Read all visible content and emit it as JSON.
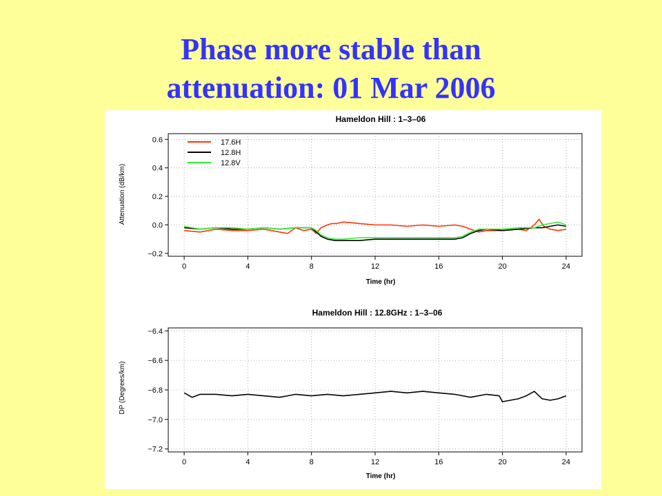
{
  "slide": {
    "title_line1": "Phase more stable than",
    "title_line2": "attenuation: 01 Mar 2006"
  },
  "colors": {
    "background": "#ffff99",
    "title": "#3333ff",
    "series_17_6H": "#ff3300",
    "series_12_8H": "#000000",
    "series_12_8V": "#33ee33"
  },
  "chart_data": [
    {
      "type": "line",
      "title": "Hameldon Hill : 1–3–06",
      "xlabel": "Time (hr)",
      "ylabel": "Attenuation (dB/km)",
      "xlim": [
        -1,
        25
      ],
      "ylim": [
        -0.22,
        0.64
      ],
      "xticks": [
        0,
        4,
        8,
        12,
        16,
        20,
        24
      ],
      "yticks": [
        -0.2,
        0.0,
        0.2,
        0.4,
        0.6
      ],
      "ytick_labels": [
        "−0.2",
        "0.0",
        "0.2",
        "0.4",
        "0.6"
      ],
      "grid": true,
      "legend_position": "top-left",
      "series": [
        {
          "name": "17.6H",
          "color": "#ff3300",
          "x": [
            0,
            1,
            2,
            3,
            4,
            5,
            6,
            6.5,
            7,
            7.5,
            8,
            8.3,
            8.6,
            9,
            9.3,
            9.6,
            10,
            11,
            12,
            13,
            14,
            15,
            16,
            17,
            17.5,
            18,
            18.5,
            19,
            20,
            21,
            21.5,
            22,
            22.3,
            22.6,
            23,
            23.5,
            24
          ],
          "y": [
            -0.04,
            -0.05,
            -0.03,
            -0.04,
            -0.04,
            -0.03,
            -0.05,
            -0.06,
            -0.02,
            -0.04,
            -0.03,
            -0.06,
            -0.02,
            0.0,
            0.01,
            0.01,
            0.02,
            0.01,
            0.0,
            0.0,
            -0.01,
            0.0,
            -0.01,
            0.0,
            -0.01,
            -0.03,
            -0.05,
            -0.04,
            -0.04,
            -0.03,
            -0.04,
            0.0,
            0.04,
            -0.01,
            -0.03,
            -0.04,
            -0.03
          ]
        },
        {
          "name": "12.8H",
          "color": "#000000",
          "x": [
            0,
            1,
            2,
            3,
            4,
            5,
            6,
            7,
            8,
            8.3,
            8.6,
            9,
            9.5,
            10,
            11,
            12,
            13,
            14,
            15,
            16,
            17,
            17.5,
            18,
            18.5,
            19,
            20,
            21,
            22,
            22.5,
            23,
            23.5,
            24
          ],
          "y": [
            -0.02,
            -0.03,
            -0.02,
            -0.03,
            -0.03,
            -0.02,
            -0.03,
            -0.02,
            -0.02,
            -0.05,
            -0.08,
            -0.1,
            -0.11,
            -0.11,
            -0.11,
            -0.1,
            -0.1,
            -0.1,
            -0.1,
            -0.1,
            -0.1,
            -0.09,
            -0.06,
            -0.04,
            -0.03,
            -0.04,
            -0.03,
            -0.02,
            -0.02,
            -0.01,
            0.0,
            -0.01
          ]
        },
        {
          "name": "12.8V",
          "color": "#33ee33",
          "x": [
            0,
            1,
            2,
            3,
            4,
            5,
            6,
            7,
            8,
            8.3,
            8.6,
            9,
            9.5,
            10,
            11,
            12,
            13,
            14,
            15,
            16,
            17,
            17.5,
            18,
            18.5,
            19,
            20,
            21,
            22,
            22.5,
            23,
            23.5,
            24
          ],
          "y": [
            -0.01,
            -0.03,
            -0.02,
            -0.02,
            -0.03,
            -0.02,
            -0.03,
            -0.02,
            -0.02,
            -0.04,
            -0.07,
            -0.09,
            -0.1,
            -0.1,
            -0.09,
            -0.09,
            -0.09,
            -0.09,
            -0.09,
            -0.09,
            -0.09,
            -0.08,
            -0.05,
            -0.03,
            -0.03,
            -0.03,
            -0.02,
            -0.02,
            0.0,
            0.01,
            0.02,
            0.0
          ]
        }
      ]
    },
    {
      "type": "line",
      "title": "Hameldon Hill : 12.8GHz : 1–3–06",
      "xlabel": "Time (hr)",
      "ylabel": "DP (Degrees/km)",
      "xlim": [
        -1,
        25
      ],
      "ylim": [
        -7.22,
        -6.38
      ],
      "xticks": [
        0,
        4,
        8,
        12,
        16,
        20,
        24
      ],
      "yticks": [
        -7.2,
        -7.0,
        -6.8,
        -6.6,
        -6.4
      ],
      "ytick_labels": [
        "−7.2",
        "−7.0",
        "−6.8",
        "−6.6",
        "−6.4"
      ],
      "grid": true,
      "series": [
        {
          "color": "#000000",
          "x": [
            0,
            0.5,
            1,
            2,
            3,
            4,
            5,
            6,
            6.5,
            7,
            8,
            9,
            10,
            11,
            12,
            13,
            14,
            15,
            16,
            17,
            18,
            19,
            19.8,
            20,
            20.5,
            21,
            21.5,
            22,
            22.5,
            23,
            23.5,
            24
          ],
          "y": [
            -6.82,
            -6.85,
            -6.83,
            -6.83,
            -6.84,
            -6.83,
            -6.84,
            -6.85,
            -6.84,
            -6.83,
            -6.84,
            -6.83,
            -6.84,
            -6.83,
            -6.82,
            -6.81,
            -6.82,
            -6.81,
            -6.82,
            -6.83,
            -6.85,
            -6.83,
            -6.84,
            -6.88,
            -6.87,
            -6.86,
            -6.84,
            -6.81,
            -6.86,
            -6.87,
            -6.86,
            -6.84
          ]
        }
      ]
    }
  ]
}
